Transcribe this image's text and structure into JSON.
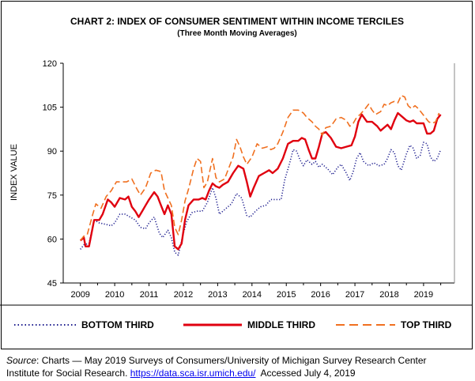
{
  "chart_data": {
    "type": "line",
    "title": "CHART 2: INDEX OF CONSUMER SENTIMENT WITHIN INCOME TERCILES",
    "subtitle": "(Three Month Moving Averages)",
    "ylabel": "INDEX VALUE",
    "xlabel": "",
    "ylim": [
      45,
      120
    ],
    "yticks": [
      "45",
      "60",
      "75",
      "90",
      "105",
      "120"
    ],
    "xlim": [
      2008.5,
      2019.9
    ],
    "xticks": [
      "2009",
      "2010",
      "2011",
      "2012",
      "2013",
      "2014",
      "2015",
      "2016",
      "2017",
      "2018",
      "2019"
    ],
    "grid": false,
    "legend_position": "bottom",
    "series": [
      {
        "name": "BOTTOM THIRD",
        "color": "#1f1f8f",
        "style": "dotted",
        "points": [
          [
            2009.0,
            56.5
          ],
          [
            2009.1,
            58.0
          ],
          [
            2009.25,
            58.5
          ],
          [
            2009.4,
            66.5
          ],
          [
            2009.55,
            65.5
          ],
          [
            2009.75,
            65.0
          ],
          [
            2009.9,
            64.5
          ],
          [
            2010.0,
            65.5
          ],
          [
            2010.15,
            68.5
          ],
          [
            2010.3,
            68.5
          ],
          [
            2010.45,
            67.5
          ],
          [
            2010.6,
            66.5
          ],
          [
            2010.75,
            64.0
          ],
          [
            2010.9,
            63.5
          ],
          [
            2011.0,
            65.5
          ],
          [
            2011.15,
            67.5
          ],
          [
            2011.3,
            62.0
          ],
          [
            2011.4,
            60.5
          ],
          [
            2011.55,
            63.0
          ],
          [
            2011.65,
            60.5
          ],
          [
            2011.75,
            55.5
          ],
          [
            2011.85,
            54.5
          ],
          [
            2012.0,
            62.0
          ],
          [
            2012.1,
            66.0
          ],
          [
            2012.25,
            69.0
          ],
          [
            2012.4,
            69.5
          ],
          [
            2012.55,
            69.5
          ],
          [
            2012.7,
            72.5
          ],
          [
            2012.85,
            77.5
          ],
          [
            2012.95,
            74.0
          ],
          [
            2013.05,
            68.5
          ],
          [
            2013.2,
            70.0
          ],
          [
            2013.4,
            72.0
          ],
          [
            2013.55,
            75.5
          ],
          [
            2013.7,
            74.0
          ],
          [
            2013.85,
            68.0
          ],
          [
            2013.95,
            67.5
          ],
          [
            2014.1,
            69.5
          ],
          [
            2014.25,
            71.0
          ],
          [
            2014.4,
            71.5
          ],
          [
            2014.55,
            73.5
          ],
          [
            2014.7,
            73.5
          ],
          [
            2014.85,
            73.5
          ],
          [
            2014.95,
            80.0
          ],
          [
            2015.1,
            86.0
          ],
          [
            2015.2,
            90.5
          ],
          [
            2015.3,
            90.0
          ],
          [
            2015.4,
            87.0
          ],
          [
            2015.5,
            85.0
          ],
          [
            2015.6,
            87.0
          ],
          [
            2015.75,
            85.5
          ],
          [
            2015.85,
            86.5
          ],
          [
            2015.95,
            84.5
          ],
          [
            2016.05,
            85.5
          ],
          [
            2016.2,
            84.0
          ],
          [
            2016.35,
            82.0
          ],
          [
            2016.5,
            84.5
          ],
          [
            2016.6,
            85.5
          ],
          [
            2016.75,
            82.5
          ],
          [
            2016.85,
            80.0
          ],
          [
            2016.95,
            83.0
          ],
          [
            2017.05,
            87.5
          ],
          [
            2017.15,
            89.5
          ],
          [
            2017.25,
            86.5
          ],
          [
            2017.4,
            85.0
          ],
          [
            2017.55,
            86.0
          ],
          [
            2017.7,
            85.0
          ],
          [
            2017.85,
            85.5
          ],
          [
            2017.95,
            87.5
          ],
          [
            2018.05,
            90.5
          ],
          [
            2018.15,
            89.5
          ],
          [
            2018.25,
            85.0
          ],
          [
            2018.35,
            83.5
          ],
          [
            2018.5,
            89.0
          ],
          [
            2018.6,
            92.0
          ],
          [
            2018.7,
            91.0
          ],
          [
            2018.8,
            87.5
          ],
          [
            2018.9,
            88.5
          ],
          [
            2019.0,
            93.0
          ],
          [
            2019.1,
            92.5
          ],
          [
            2019.2,
            88.0
          ],
          [
            2019.3,
            86.5
          ],
          [
            2019.4,
            87.5
          ],
          [
            2019.5,
            90.5
          ]
        ]
      },
      {
        "name": "MIDDLE THIRD",
        "color": "#e0000f",
        "style": "solid",
        "points": [
          [
            2009.0,
            59.5
          ],
          [
            2009.1,
            60.5
          ],
          [
            2009.15,
            57.5
          ],
          [
            2009.25,
            57.5
          ],
          [
            2009.4,
            66.5
          ],
          [
            2009.55,
            66.5
          ],
          [
            2009.65,
            68.5
          ],
          [
            2009.8,
            73.5
          ],
          [
            2009.9,
            72.5
          ],
          [
            2010.0,
            71.0
          ],
          [
            2010.15,
            74.0
          ],
          [
            2010.3,
            73.5
          ],
          [
            2010.4,
            74.5
          ],
          [
            2010.5,
            71.0
          ],
          [
            2010.6,
            69.5
          ],
          [
            2010.7,
            67.5
          ],
          [
            2010.8,
            69.5
          ],
          [
            2010.9,
            71.5
          ],
          [
            2011.0,
            73.5
          ],
          [
            2011.15,
            76.0
          ],
          [
            2011.25,
            74.5
          ],
          [
            2011.35,
            71.5
          ],
          [
            2011.45,
            68.5
          ],
          [
            2011.55,
            71.5
          ],
          [
            2011.65,
            68.5
          ],
          [
            2011.75,
            57.5
          ],
          [
            2011.85,
            56.5
          ],
          [
            2011.95,
            58.5
          ],
          [
            2012.05,
            66.5
          ],
          [
            2012.15,
            71.5
          ],
          [
            2012.3,
            73.5
          ],
          [
            2012.45,
            73.5
          ],
          [
            2012.55,
            74.0
          ],
          [
            2012.65,
            73.5
          ],
          [
            2012.75,
            76.5
          ],
          [
            2012.85,
            79.0
          ],
          [
            2012.95,
            78.0
          ],
          [
            2013.05,
            77.5
          ],
          [
            2013.15,
            78.5
          ],
          [
            2013.3,
            79.5
          ],
          [
            2013.45,
            82.5
          ],
          [
            2013.6,
            85.0
          ],
          [
            2013.75,
            84.0
          ],
          [
            2013.85,
            79.5
          ],
          [
            2013.95,
            74.5
          ],
          [
            2014.05,
            77.5
          ],
          [
            2014.2,
            81.5
          ],
          [
            2014.35,
            82.5
          ],
          [
            2014.5,
            83.5
          ],
          [
            2014.6,
            82.5
          ],
          [
            2014.75,
            84.0
          ],
          [
            2014.9,
            87.5
          ],
          [
            2015.05,
            92.5
          ],
          [
            2015.2,
            93.5
          ],
          [
            2015.35,
            93.5
          ],
          [
            2015.45,
            94.5
          ],
          [
            2015.55,
            94.0
          ],
          [
            2015.65,
            90.5
          ],
          [
            2015.75,
            87.5
          ],
          [
            2015.85,
            87.5
          ],
          [
            2015.95,
            91.5
          ],
          [
            2016.05,
            96.0
          ],
          [
            2016.15,
            96.5
          ],
          [
            2016.3,
            94.5
          ],
          [
            2016.45,
            91.5
          ],
          [
            2016.6,
            91.0
          ],
          [
            2016.75,
            91.5
          ],
          [
            2016.9,
            92.0
          ],
          [
            2017.0,
            95.0
          ],
          [
            2017.1,
            100.0
          ],
          [
            2017.2,
            102.5
          ],
          [
            2017.35,
            100.0
          ],
          [
            2017.5,
            100.0
          ],
          [
            2017.65,
            98.5
          ],
          [
            2017.75,
            97.0
          ],
          [
            2017.85,
            98.0
          ],
          [
            2017.95,
            99.0
          ],
          [
            2018.05,
            97.5
          ],
          [
            2018.15,
            100.5
          ],
          [
            2018.25,
            103.0
          ],
          [
            2018.35,
            102.0
          ],
          [
            2018.5,
            100.5
          ],
          [
            2018.6,
            100.0
          ],
          [
            2018.7,
            100.5
          ],
          [
            2018.8,
            99.5
          ],
          [
            2018.9,
            99.5
          ],
          [
            2019.0,
            99.5
          ],
          [
            2019.1,
            96.0
          ],
          [
            2019.2,
            96.0
          ],
          [
            2019.3,
            97.0
          ],
          [
            2019.4,
            101.0
          ],
          [
            2019.5,
            102.5
          ]
        ]
      },
      {
        "name": "TOP THIRD",
        "color": "#f07020",
        "style": "dashed",
        "points": [
          [
            2009.0,
            59.5
          ],
          [
            2009.1,
            61.0
          ],
          [
            2009.2,
            61.5
          ],
          [
            2009.35,
            68.0
          ],
          [
            2009.45,
            72.0
          ],
          [
            2009.6,
            70.5
          ],
          [
            2009.75,
            74.5
          ],
          [
            2009.9,
            76.5
          ],
          [
            2010.05,
            79.5
          ],
          [
            2010.2,
            79.5
          ],
          [
            2010.35,
            79.5
          ],
          [
            2010.5,
            80.5
          ],
          [
            2010.65,
            77.0
          ],
          [
            2010.75,
            75.0
          ],
          [
            2010.9,
            77.5
          ],
          [
            2011.05,
            82.5
          ],
          [
            2011.2,
            83.5
          ],
          [
            2011.35,
            83.0
          ],
          [
            2011.45,
            76.5
          ],
          [
            2011.55,
            74.0
          ],
          [
            2011.65,
            71.5
          ],
          [
            2011.75,
            64.0
          ],
          [
            2011.85,
            61.5
          ],
          [
            2011.95,
            66.5
          ],
          [
            2012.05,
            73.0
          ],
          [
            2012.15,
            77.0
          ],
          [
            2012.3,
            84.0
          ],
          [
            2012.4,
            87.5
          ],
          [
            2012.5,
            86.5
          ],
          [
            2012.6,
            77.5
          ],
          [
            2012.7,
            79.5
          ],
          [
            2012.85,
            87.5
          ],
          [
            2012.95,
            81.0
          ],
          [
            2013.05,
            79.5
          ],
          [
            2013.2,
            80.5
          ],
          [
            2013.3,
            83.5
          ],
          [
            2013.45,
            88.0
          ],
          [
            2013.55,
            94.0
          ],
          [
            2013.65,
            91.5
          ],
          [
            2013.75,
            88.0
          ],
          [
            2013.85,
            85.5
          ],
          [
            2014.0,
            88.0
          ],
          [
            2014.15,
            92.5
          ],
          [
            2014.3,
            91.0
          ],
          [
            2014.45,
            91.5
          ],
          [
            2014.55,
            90.5
          ],
          [
            2014.65,
            91.0
          ],
          [
            2014.75,
            92.5
          ],
          [
            2014.9,
            96.5
          ],
          [
            2015.05,
            101.5
          ],
          [
            2015.2,
            104.0
          ],
          [
            2015.35,
            104.0
          ],
          [
            2015.5,
            103.0
          ],
          [
            2015.6,
            101.5
          ],
          [
            2015.75,
            100.0
          ],
          [
            2015.85,
            98.5
          ],
          [
            2015.95,
            97.5
          ],
          [
            2016.05,
            95.5
          ],
          [
            2016.15,
            98.0
          ],
          [
            2016.3,
            98.5
          ],
          [
            2016.45,
            101.0
          ],
          [
            2016.6,
            101.5
          ],
          [
            2016.75,
            100.5
          ],
          [
            2016.85,
            98.5
          ],
          [
            2016.95,
            99.5
          ],
          [
            2017.05,
            101.5
          ],
          [
            2017.15,
            102.5
          ],
          [
            2017.3,
            104.5
          ],
          [
            2017.4,
            106.0
          ],
          [
            2017.5,
            104.0
          ],
          [
            2017.6,
            102.5
          ],
          [
            2017.75,
            103.5
          ],
          [
            2017.85,
            106.0
          ],
          [
            2017.95,
            105.5
          ],
          [
            2018.05,
            106.5
          ],
          [
            2018.15,
            107.0
          ],
          [
            2018.25,
            106.5
          ],
          [
            2018.35,
            109.0
          ],
          [
            2018.45,
            108.5
          ],
          [
            2018.55,
            105.5
          ],
          [
            2018.65,
            104.5
          ],
          [
            2018.75,
            105.5
          ],
          [
            2018.85,
            104.5
          ],
          [
            2018.95,
            103.0
          ],
          [
            2019.05,
            101.5
          ],
          [
            2019.15,
            100.0
          ],
          [
            2019.25,
            99.5
          ],
          [
            2019.35,
            100.0
          ],
          [
            2019.45,
            103.0
          ]
        ]
      }
    ]
  },
  "source": {
    "label": "Source",
    "line1": ": Charts — May 2019 Surveys of Consumers/University of Michigan Survey Research Center",
    "line2_text": "Institute for Social Research. ",
    "url": "https://data.sca.isr.umich.edu/",
    "accessed": "  Accessed July 4, 2019"
  }
}
